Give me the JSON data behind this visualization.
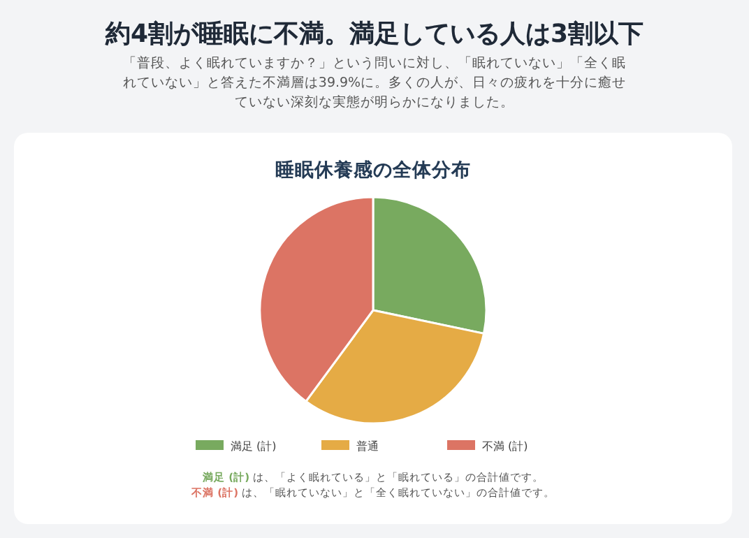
{
  "chart_data": {
    "type": "pie",
    "title": "睡眠休養感の全体分布",
    "categories": [
      "満足 (計)",
      "普通",
      "不満 (計)"
    ],
    "values": [
      28.3,
      31.8,
      39.9
    ],
    "colors": [
      "#78aa5f",
      "#e5ab45",
      "#dc7464"
    ],
    "legend": "bottom",
    "annotations": [
      "約4割が睡眠に不満。満足している人は3割以下",
      "「普段、よく眠れていますか？」という問いに対し、「眠れていない」「全く眠れていない」と答えた不満層は39.9%に。多くの人が、日々の疲れを十分に癒せていない深刻な実態が明らかになりました。",
      "満足 (計) は、「よく眠れている」と「眠れている」の合計値です。",
      "不満 (計) は、「眠れていない」と「全く眠れていない」の合計値です。"
    ]
  }
}
